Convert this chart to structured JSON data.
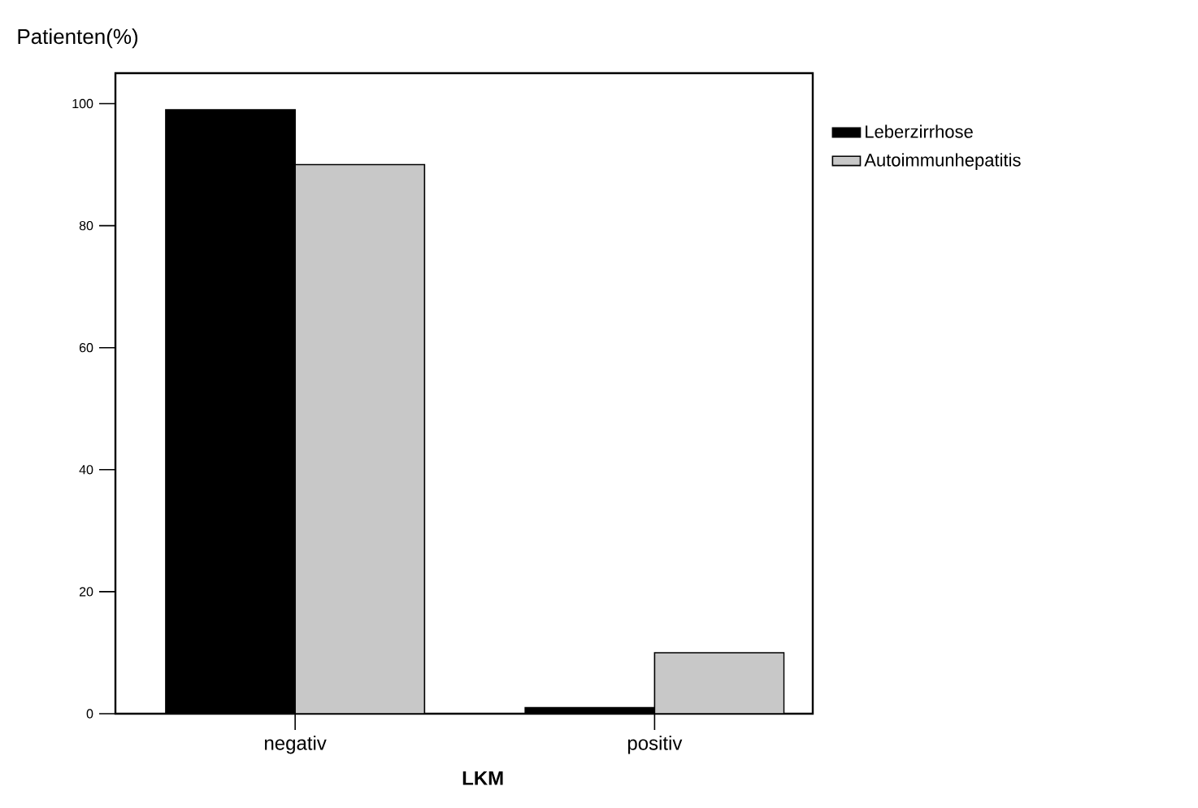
{
  "chart_data": {
    "type": "bar",
    "ylabel": "Patienten(%)",
    "xlabel": "LKM",
    "categories": [
      "negativ",
      "positiv"
    ],
    "series": [
      {
        "name": "Leberzirrhose",
        "color": "#000000",
        "values": [
          99,
          1
        ]
      },
      {
        "name": "Autoimmunhepatitis",
        "color": "#c8c8c8",
        "values": [
          90,
          10
        ]
      }
    ],
    "ylim": [
      0,
      105
    ],
    "yticks": [
      0,
      20,
      40,
      60,
      80,
      100
    ],
    "legend": "right"
  }
}
